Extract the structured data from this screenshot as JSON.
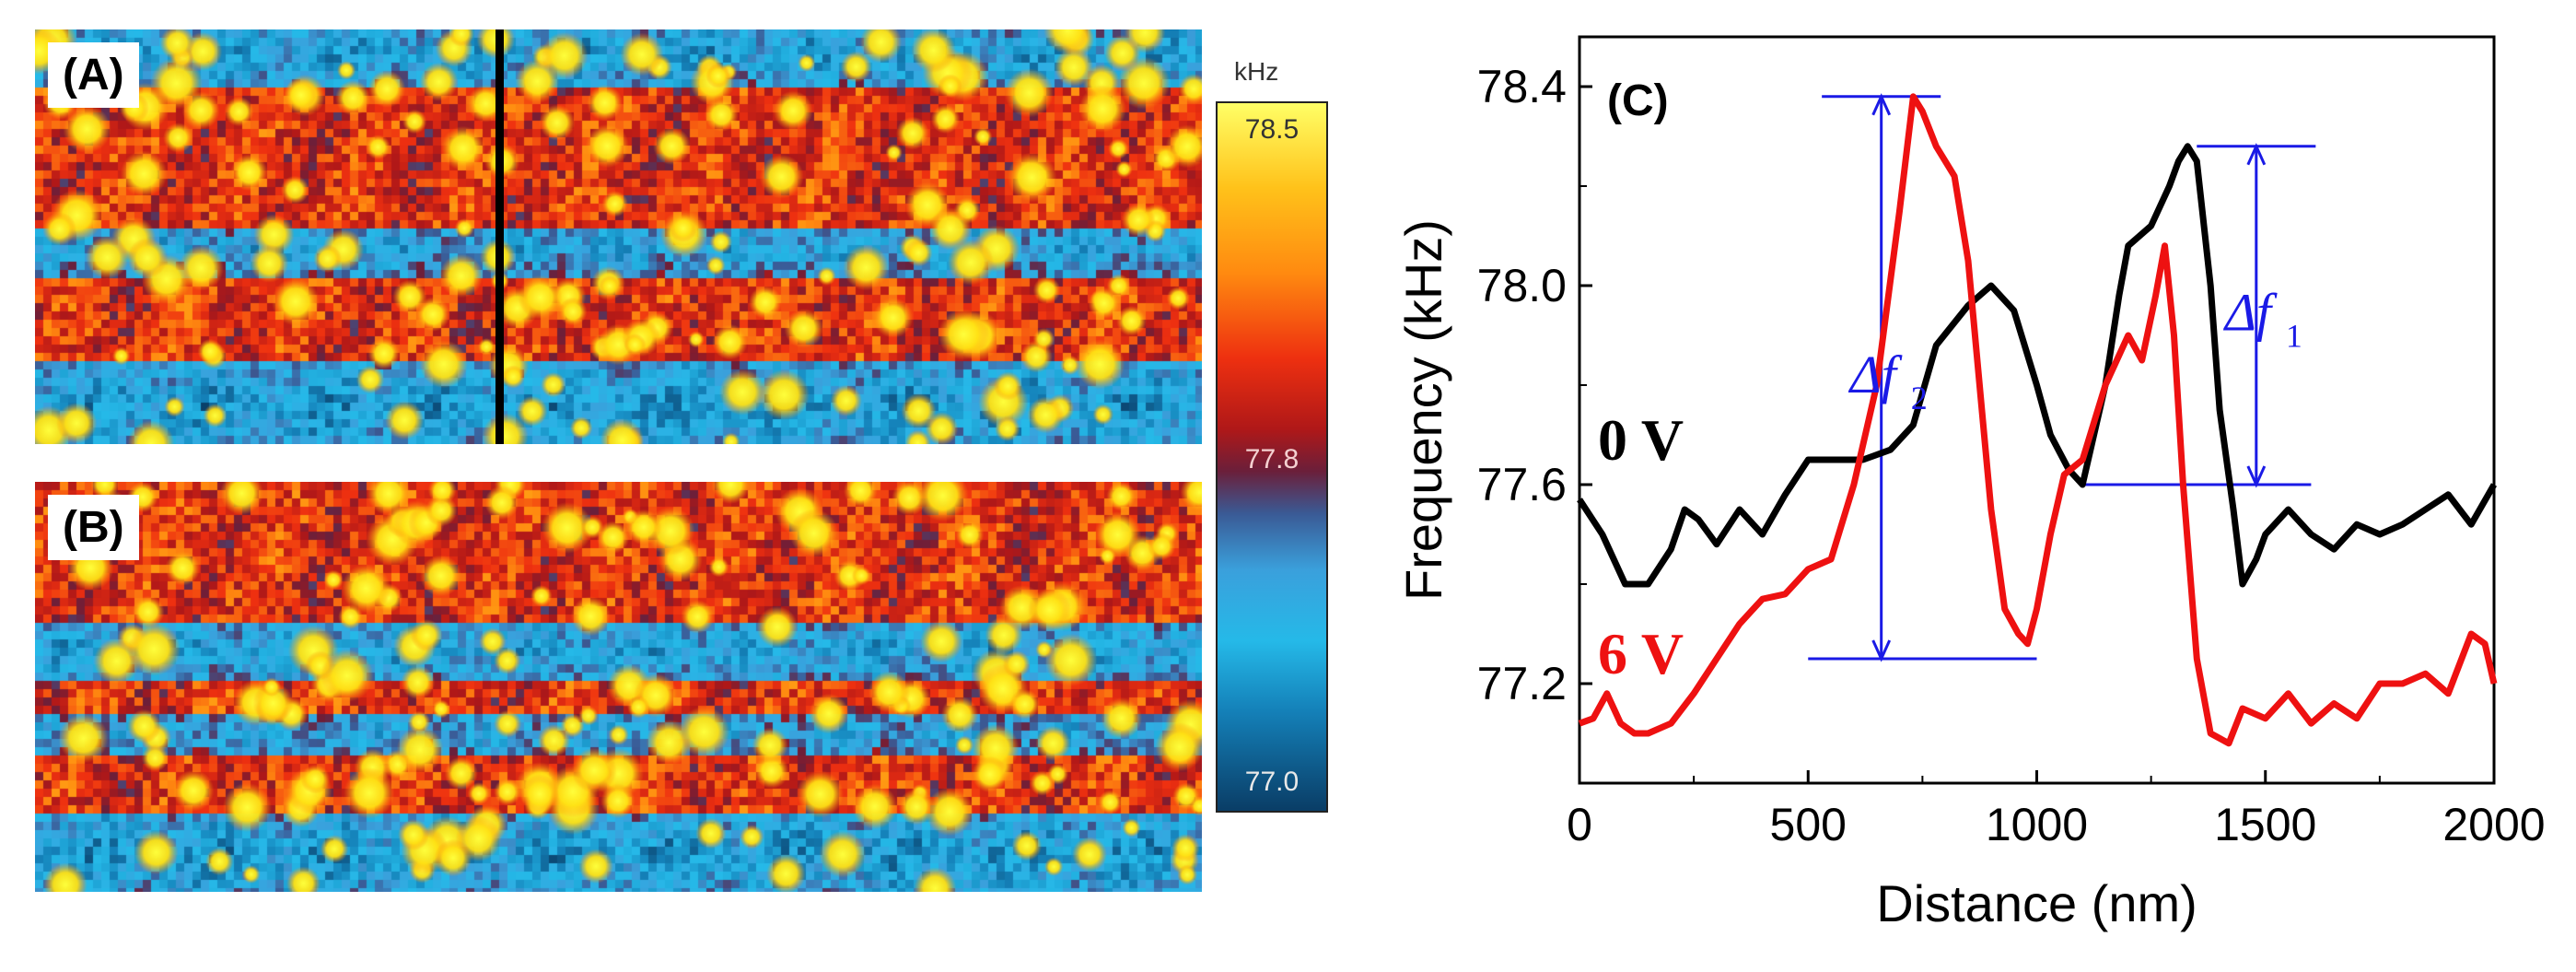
{
  "panels": {
    "a": {
      "label": "(A)"
    },
    "b": {
      "label": "(B)"
    },
    "c": {
      "label": "(C)"
    }
  },
  "colorbar": {
    "unit": "kHz",
    "max": "78.5",
    "mid": "77.8",
    "min": "77.0",
    "range": [
      77.0,
      78.5
    ],
    "max_color": "#ffff66",
    "min_color": "#0a3d66"
  },
  "chart_data": {
    "type": "line",
    "xlabel": "Distance (nm)",
    "ylabel": "Frequency (kHz)",
    "xlim": [
      0,
      2000
    ],
    "ylim": [
      77.0,
      78.5
    ],
    "xticks": [
      "0",
      "500",
      "1000",
      "1500",
      "2000"
    ],
    "yticks": [
      "77.2",
      "77.6",
      "78.0",
      "78.4"
    ],
    "series": [
      {
        "name": "0 V",
        "color": "#000000",
        "x": [
          0,
          50,
          100,
          150,
          200,
          230,
          260,
          300,
          350,
          400,
          450,
          500,
          560,
          620,
          680,
          730,
          780,
          850,
          900,
          950,
          1000,
          1030,
          1070,
          1100,
          1150,
          1180,
          1200,
          1250,
          1290,
          1310,
          1330,
          1350,
          1380,
          1400,
          1430,
          1450,
          1480,
          1500,
          1550,
          1600,
          1650,
          1700,
          1750,
          1800,
          1850,
          1900,
          1950,
          2000
        ],
        "y": [
          77.57,
          77.5,
          77.4,
          77.4,
          77.47,
          77.55,
          77.53,
          77.48,
          77.55,
          77.5,
          77.58,
          77.65,
          77.65,
          77.65,
          77.67,
          77.72,
          77.88,
          77.96,
          78.0,
          77.95,
          77.8,
          77.7,
          77.63,
          77.6,
          77.8,
          77.98,
          78.08,
          78.12,
          78.2,
          78.25,
          78.28,
          78.25,
          78.0,
          77.75,
          77.55,
          77.4,
          77.45,
          77.5,
          77.55,
          77.5,
          77.47,
          77.52,
          77.5,
          77.52,
          77.55,
          77.58,
          77.52,
          77.6
        ]
      },
      {
        "name": "6 V",
        "color": "#ee1111",
        "x": [
          0,
          30,
          60,
          90,
          120,
          150,
          200,
          250,
          300,
          350,
          400,
          450,
          500,
          550,
          600,
          650,
          700,
          730,
          750,
          780,
          820,
          850,
          880,
          900,
          930,
          960,
          980,
          1000,
          1030,
          1060,
          1100,
          1150,
          1200,
          1230,
          1260,
          1280,
          1300,
          1320,
          1350,
          1380,
          1420,
          1450,
          1500,
          1550,
          1600,
          1650,
          1700,
          1750,
          1800,
          1850,
          1900,
          1950,
          1980,
          2000
        ],
        "y": [
          77.12,
          77.13,
          77.18,
          77.12,
          77.1,
          77.1,
          77.12,
          77.18,
          77.25,
          77.32,
          77.37,
          77.38,
          77.43,
          77.45,
          77.6,
          77.8,
          78.15,
          78.38,
          78.35,
          78.28,
          78.22,
          78.05,
          77.75,
          77.55,
          77.35,
          77.3,
          77.28,
          77.35,
          77.5,
          77.62,
          77.65,
          77.8,
          77.9,
          77.85,
          77.98,
          78.08,
          77.9,
          77.6,
          77.25,
          77.1,
          77.08,
          77.15,
          77.13,
          77.18,
          77.12,
          77.16,
          77.13,
          77.2,
          77.2,
          77.22,
          77.18,
          77.3,
          77.28,
          77.2
        ]
      }
    ],
    "annotations": {
      "df1": {
        "label_main": "Δf",
        "label_sub": "1",
        "color": "#1a1ae6",
        "x_from": 1100,
        "x_to": 1600,
        "y_low": 77.6,
        "y_high": 78.28,
        "arrow_x": 1480
      },
      "df2": {
        "label_main": "Δf",
        "label_sub": "2",
        "color": "#1a1ae6",
        "x_from": 500,
        "x_to": 1000,
        "y_low": 77.25,
        "y_high": 78.38,
        "arrow_x": 660
      }
    }
  }
}
